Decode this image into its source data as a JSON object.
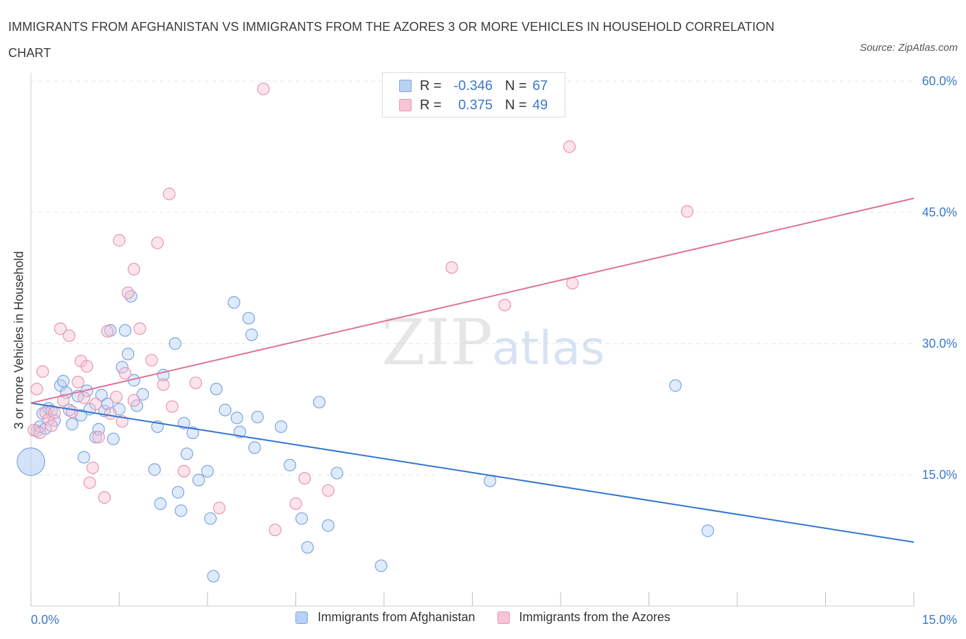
{
  "title": "IMMIGRANTS FROM AFGHANISTAN VS IMMIGRANTS FROM THE AZORES 3 OR MORE VEHICLES IN HOUSEHOLD CORRELATION CHART",
  "source": "Source: ZipAtlas.com",
  "watermark": {
    "zip": "ZIP",
    "atlas": "atlas"
  },
  "colors": {
    "afghanistan_fill": "#b9d1f5",
    "afghanistan_stroke": "#7aa5e0",
    "afghanistan_line": "#2f74d0",
    "azores_fill": "#f8c4d3",
    "azores_stroke": "#e795b0",
    "azores_line": "#e07097",
    "tick_label": "#3b78c9",
    "grid": "#e3e3e3"
  },
  "legend": {
    "rows": [
      {
        "r_label": "R =",
        "r_value": "-0.346",
        "n_label": "N =",
        "n_value": "67"
      },
      {
        "r_label": "R =",
        "r_value": "0.375",
        "n_label": "N =",
        "n_value": "49"
      }
    ]
  },
  "bottom_legend": [
    "Immigrants from Afghanistan",
    "Immigrants from the Azores"
  ],
  "chart_data": {
    "type": "scatter",
    "xlabel": "",
    "ylabel": "3 or more Vehicles in Household",
    "xlim": [
      0,
      15
    ],
    "ylim": [
      0,
      60
    ],
    "x_tick_labels": [
      {
        "value": 0,
        "label": "0.0%"
      },
      {
        "value": 15,
        "label": "15.0%"
      }
    ],
    "y_tick_labels": [
      {
        "value": 15,
        "label": "15.0%"
      },
      {
        "value": 30,
        "label": "30.0%"
      },
      {
        "value": 45,
        "label": "45.0%"
      },
      {
        "value": 60,
        "label": "60.0%"
      }
    ],
    "grid": true,
    "legend_position": "top-center",
    "series": [
      {
        "name": "Immigrants from Afghanistan",
        "points": [
          [
            0.0,
            16.5
          ],
          [
            0.1,
            20.0
          ],
          [
            0.15,
            20.5
          ],
          [
            0.2,
            22.0
          ],
          [
            0.25,
            20.3
          ],
          [
            0.3,
            22.6
          ],
          [
            0.35,
            22.3
          ],
          [
            0.4,
            21.2
          ],
          [
            0.5,
            25.2
          ],
          [
            0.55,
            25.7
          ],
          [
            0.6,
            24.4
          ],
          [
            0.65,
            22.4
          ],
          [
            0.7,
            20.8
          ],
          [
            0.8,
            24.0
          ],
          [
            0.85,
            21.8
          ],
          [
            0.9,
            17.0
          ],
          [
            0.95,
            24.6
          ],
          [
            1.0,
            22.5
          ],
          [
            1.1,
            19.3
          ],
          [
            1.15,
            20.2
          ],
          [
            1.2,
            24.1
          ],
          [
            1.25,
            22.3
          ],
          [
            1.3,
            23.1
          ],
          [
            1.35,
            31.5
          ],
          [
            1.4,
            19.1
          ],
          [
            1.5,
            22.5
          ],
          [
            1.55,
            27.3
          ],
          [
            1.6,
            31.5
          ],
          [
            1.65,
            28.8
          ],
          [
            1.7,
            35.4
          ],
          [
            1.75,
            25.8
          ],
          [
            1.8,
            22.9
          ],
          [
            1.9,
            24.2
          ],
          [
            2.1,
            15.6
          ],
          [
            2.15,
            20.5
          ],
          [
            2.2,
            11.7
          ],
          [
            2.25,
            26.4
          ],
          [
            2.45,
            30.0
          ],
          [
            2.5,
            13.0
          ],
          [
            2.55,
            10.9
          ],
          [
            2.6,
            20.9
          ],
          [
            2.65,
            17.4
          ],
          [
            2.75,
            19.8
          ],
          [
            2.85,
            14.4
          ],
          [
            3.0,
            15.4
          ],
          [
            3.05,
            10.0
          ],
          [
            3.1,
            3.4
          ],
          [
            3.15,
            24.8
          ],
          [
            3.3,
            22.4
          ],
          [
            3.45,
            34.7
          ],
          [
            3.5,
            21.5
          ],
          [
            3.55,
            19.9
          ],
          [
            3.7,
            32.9
          ],
          [
            3.75,
            31.0
          ],
          [
            3.8,
            18.1
          ],
          [
            3.85,
            21.6
          ],
          [
            4.25,
            20.5
          ],
          [
            4.4,
            16.1
          ],
          [
            4.6,
            10.0
          ],
          [
            4.7,
            6.7
          ],
          [
            4.9,
            23.3
          ],
          [
            5.05,
            9.2
          ],
          [
            5.2,
            15.2
          ],
          [
            5.95,
            4.6
          ],
          [
            7.8,
            14.3
          ],
          [
            10.95,
            25.2
          ],
          [
            11.5,
            8.6
          ]
        ]
      },
      {
        "name": "Immigrants from the Azores",
        "points": [
          [
            0.05,
            20.1
          ],
          [
            0.1,
            24.8
          ],
          [
            0.15,
            19.8
          ],
          [
            0.2,
            26.8
          ],
          [
            0.25,
            22.1
          ],
          [
            0.3,
            21.3
          ],
          [
            0.35,
            20.6
          ],
          [
            0.4,
            22.1
          ],
          [
            0.5,
            31.7
          ],
          [
            0.55,
            23.5
          ],
          [
            0.65,
            30.9
          ],
          [
            0.7,
            22.2
          ],
          [
            0.8,
            25.6
          ],
          [
            0.85,
            28.0
          ],
          [
            0.9,
            23.8
          ],
          [
            0.95,
            27.4
          ],
          [
            1.0,
            14.1
          ],
          [
            1.05,
            15.8
          ],
          [
            1.1,
            23.1
          ],
          [
            1.15,
            19.3
          ],
          [
            1.25,
            12.4
          ],
          [
            1.3,
            31.4
          ],
          [
            1.35,
            22.0
          ],
          [
            1.45,
            23.9
          ],
          [
            1.5,
            41.8
          ],
          [
            1.55,
            21.1
          ],
          [
            1.6,
            26.6
          ],
          [
            1.65,
            35.8
          ],
          [
            1.75,
            23.5
          ],
          [
            1.75,
            38.5
          ],
          [
            1.85,
            31.7
          ],
          [
            2.05,
            28.1
          ],
          [
            2.15,
            41.5
          ],
          [
            2.25,
            25.3
          ],
          [
            2.35,
            47.1
          ],
          [
            2.4,
            22.8
          ],
          [
            2.6,
            15.4
          ],
          [
            2.8,
            25.5
          ],
          [
            3.2,
            11.2
          ],
          [
            3.95,
            59.1
          ],
          [
            4.15,
            8.7
          ],
          [
            4.5,
            11.7
          ],
          [
            4.65,
            14.6
          ],
          [
            5.05,
            13.2
          ],
          [
            7.15,
            38.7
          ],
          [
            8.05,
            34.4
          ],
          [
            9.15,
            52.5
          ],
          [
            9.2,
            36.9
          ],
          [
            11.15,
            45.1
          ]
        ]
      }
    ],
    "trend_lines": [
      {
        "series": "Immigrants from Afghanistan",
        "from": [
          0,
          23.2
        ],
        "to": [
          15,
          7.3
        ]
      },
      {
        "series": "Immigrants from the Azores",
        "from": [
          0,
          23.2
        ],
        "to": [
          15,
          46.6
        ]
      }
    ]
  }
}
